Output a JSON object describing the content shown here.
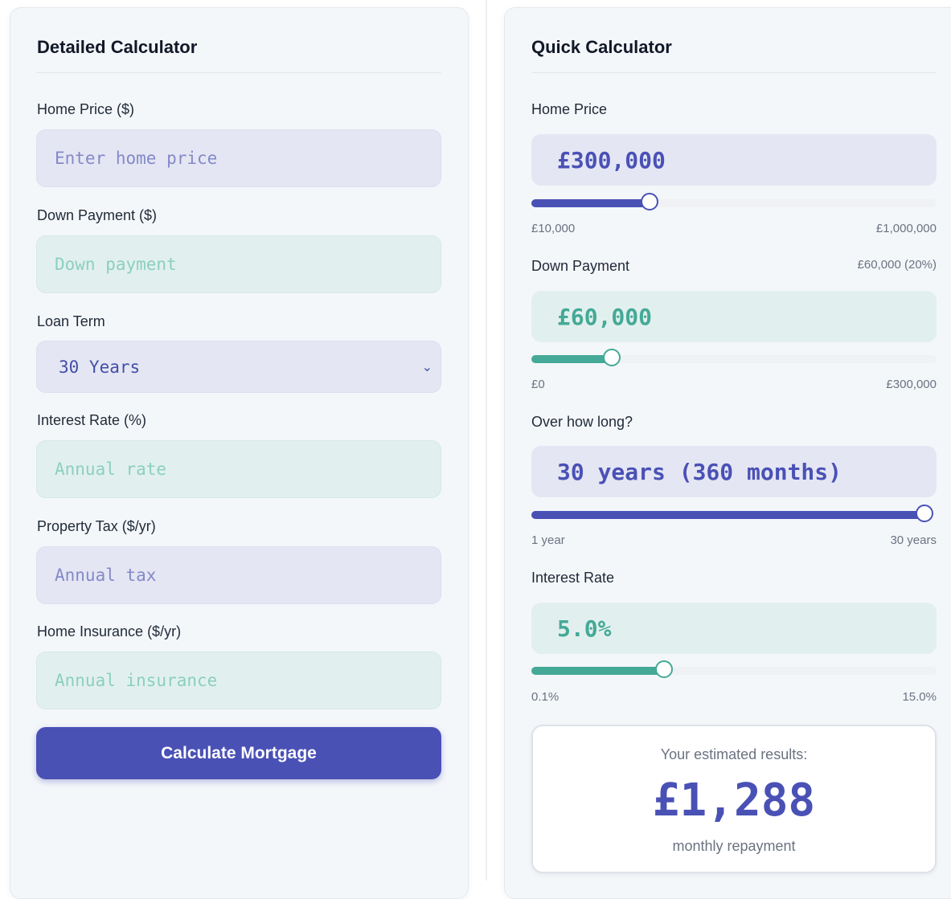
{
  "detailed": {
    "title": "Detailed Calculator",
    "home_price": {
      "label": "Home Price ($)",
      "placeholder": "Enter home price"
    },
    "down_payment": {
      "label": "Down Payment ($)",
      "placeholder": "Down payment"
    },
    "loan_term": {
      "label": "Loan Term",
      "value": "30 Years"
    },
    "interest_rate": {
      "label": "Interest Rate (%)",
      "placeholder": "Annual rate"
    },
    "property_tax": {
      "label": "Property Tax ($/yr)",
      "placeholder": "Annual tax"
    },
    "home_insurance": {
      "label": "Home Insurance ($/yr)",
      "placeholder": "Annual insurance"
    },
    "calculate_label": "Calculate Mortgage"
  },
  "quick": {
    "title": "Quick Calculator",
    "home_price": {
      "label": "Home Price",
      "value": "£300,000",
      "min": "£10,000",
      "max": "£1,000,000",
      "slider_fraction": 0.293
    },
    "down_payment": {
      "label": "Down Payment",
      "summary": "£60,000 (20%)",
      "value": "£60,000",
      "min": "£0",
      "max": "£300,000",
      "slider_fraction": 0.2
    },
    "term": {
      "label": "Over how long?",
      "value": "30 years (360 months)",
      "min": "1 year",
      "max": "30 years",
      "slider_fraction": 1.0
    },
    "interest_rate": {
      "label": "Interest Rate",
      "value": "5.0%",
      "min": "0.1%",
      "max": "15.0%",
      "slider_fraction": 0.329
    },
    "results": {
      "heading": "Your estimated results:",
      "amount": "£1,288",
      "caption": "monthly repayment"
    }
  },
  "colors": {
    "indigo": "#4a51b5",
    "teal": "#45a997"
  },
  "icons": {
    "loan_term_select": "chevron-down-icon"
  }
}
